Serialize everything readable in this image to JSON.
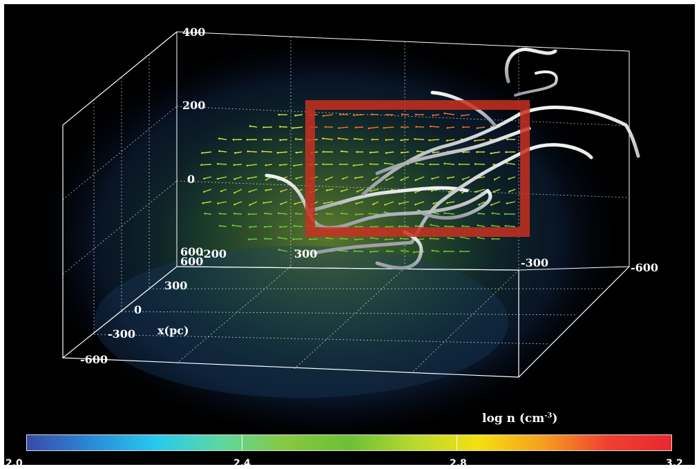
{
  "axes": {
    "vertical_ticks": [
      "400",
      "200",
      "0",
      "-200"
    ],
    "depth_ticks": [
      "600",
      "300",
      "0",
      "-300",
      "-600"
    ],
    "depth_label": "x(pc)",
    "horizontal_ticks": [
      "600",
      "300",
      "-300",
      "-600"
    ]
  },
  "colorbar": {
    "title": "log n (cm",
    "title_sup": "-3",
    "title_close": ")",
    "ticks": [
      "2.0",
      "2.4",
      "2.8",
      "3.2"
    ],
    "range": [
      2.0,
      3.2
    ],
    "stops": [
      "#3a4aa8",
      "#2a8ad8",
      "#28c8f0",
      "#5cd8a0",
      "#88c840",
      "#6bc035",
      "#b8d830",
      "#f5e010",
      "#f5a020",
      "#f04030",
      "#e82830"
    ]
  },
  "highlight_box_color": "#c83020"
}
